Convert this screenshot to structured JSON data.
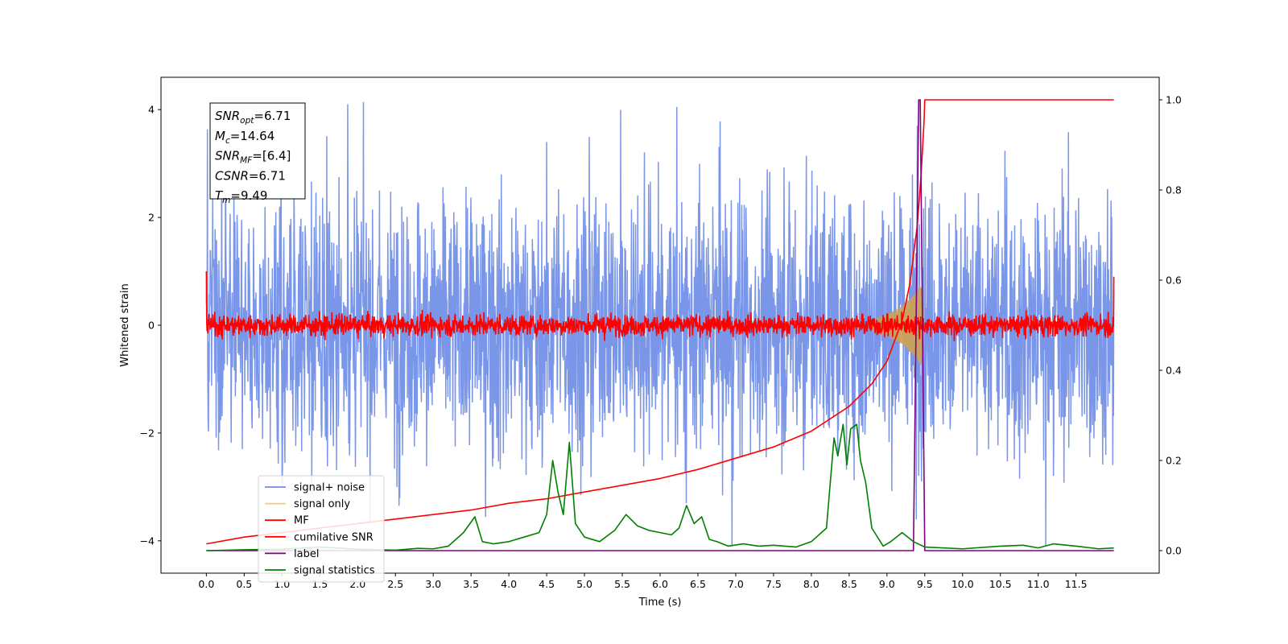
{
  "chart_data": {
    "type": "line",
    "xlabel": "Time (s)",
    "ylabel": "Whitened strain",
    "xlim": [
      -0.6,
      12.6
    ],
    "ylim_left": [
      -4.6,
      4.6
    ],
    "ylim_right": [
      -0.05,
      1.05
    ],
    "xticks": [
      0.0,
      0.5,
      1.0,
      1.5,
      2.0,
      2.5,
      3.0,
      3.5,
      4.0,
      4.5,
      5.0,
      5.5,
      6.0,
      6.5,
      7.0,
      7.5,
      8.0,
      8.5,
      9.0,
      9.5,
      10.0,
      10.5,
      11.0,
      11.5
    ],
    "xtick_labels": [
      "0.0",
      "0.5",
      "1.0",
      "1.5",
      "2.0",
      "2.5",
      "3.0",
      "3.5",
      "4.0",
      "4.5",
      "5.0",
      "5.5",
      "6.0",
      "6.5",
      "7.0",
      "7.5",
      "8.0",
      "8.5",
      "9.0",
      "9.5",
      "10.0",
      "10.5",
      "11.0",
      "11.5"
    ],
    "yticks_left": [
      -4,
      -2,
      0,
      2,
      4
    ],
    "yticks_left_labels": [
      "−4",
      "−2",
      "0",
      "2",
      "4"
    ],
    "yticks_right": [
      0.0,
      0.2,
      0.4,
      0.6,
      0.8,
      1.0
    ],
    "yticks_right_labels": [
      "0.0",
      "0.2",
      "0.4",
      "0.6",
      "0.8",
      "1.0"
    ],
    "grid": false,
    "legend_position": "lower-left",
    "series": [
      {
        "name": "signal+ noise",
        "color": "#6b8be6",
        "axis": "left",
        "x_range": [
          0,
          12
        ],
        "envelope": {
          "x": [
            0,
            12
          ],
          "lower": [
            -2.8,
            -2.8
          ],
          "upper": [
            2.8,
            2.8
          ]
        },
        "peaks": [
          [
            1.87,
            4.1
          ],
          [
            6.22,
            4.05
          ],
          [
            9.4,
            3.7
          ],
          [
            11.1,
            -4.1
          ],
          [
            6.95,
            -4.1
          ]
        ]
      },
      {
        "name": "signal only",
        "color": "#f5c97a",
        "axis": "left",
        "x": [
          8.8,
          9.0,
          9.2,
          9.35,
          9.45,
          9.5
        ],
        "amplitude": [
          0.1,
          0.2,
          0.35,
          0.55,
          0.75,
          0.0
        ]
      },
      {
        "name": "MF",
        "color": "#ff0000",
        "axis": "left",
        "x_range": [
          0,
          12
        ],
        "amplitude": 0.22,
        "start_value": 1.0,
        "end_value": 0.9
      },
      {
        "name": "cumilative SNR",
        "color": "#ff0000",
        "axis": "right",
        "x": [
          0.0,
          0.5,
          1.0,
          1.5,
          2.0,
          2.5,
          3.0,
          3.5,
          4.0,
          4.5,
          5.0,
          5.5,
          6.0,
          6.5,
          7.0,
          7.5,
          8.0,
          8.5,
          8.8,
          9.0,
          9.2,
          9.3,
          9.4,
          9.45,
          9.49,
          9.5,
          12.0
        ],
        "y": [
          0.015,
          0.03,
          0.04,
          0.05,
          0.06,
          0.07,
          0.08,
          0.09,
          0.105,
          0.115,
          0.13,
          0.145,
          0.16,
          0.18,
          0.205,
          0.23,
          0.265,
          0.32,
          0.37,
          0.42,
          0.51,
          0.59,
          0.72,
          0.83,
          0.95,
          1.0,
          1.0
        ]
      },
      {
        "name": "label",
        "color": "#800080",
        "axis": "right",
        "x": [
          0.0,
          9.35,
          9.42,
          9.44,
          9.5,
          12.0
        ],
        "y": [
          0.0,
          0.0,
          1.0,
          1.0,
          0.0,
          0.0
        ]
      },
      {
        "name": "signal statistics",
        "color": "#008000",
        "axis": "right",
        "x": [
          0.0,
          0.5,
          1.0,
          1.5,
          2.0,
          2.5,
          2.8,
          3.0,
          3.2,
          3.4,
          3.55,
          3.65,
          3.8,
          4.0,
          4.2,
          4.4,
          4.5,
          4.58,
          4.65,
          4.72,
          4.8,
          4.88,
          5.0,
          5.2,
          5.4,
          5.55,
          5.7,
          5.85,
          6.0,
          6.15,
          6.25,
          6.35,
          6.45,
          6.55,
          6.65,
          6.75,
          6.9,
          7.1,
          7.3,
          7.5,
          7.8,
          8.0,
          8.2,
          8.3,
          8.35,
          8.42,
          8.47,
          8.52,
          8.6,
          8.65,
          8.72,
          8.8,
          8.95,
          9.05,
          9.2,
          9.35,
          9.5,
          10.0,
          10.5,
          10.8,
          11.0,
          11.2,
          11.5,
          11.8,
          12.0
        ],
        "y": [
          0.0,
          0.002,
          0.003,
          0.008,
          0.003,
          0.001,
          0.005,
          0.004,
          0.01,
          0.04,
          0.075,
          0.02,
          0.015,
          0.02,
          0.03,
          0.04,
          0.08,
          0.2,
          0.13,
          0.08,
          0.24,
          0.06,
          0.03,
          0.02,
          0.045,
          0.08,
          0.055,
          0.045,
          0.04,
          0.035,
          0.05,
          0.1,
          0.06,
          0.075,
          0.025,
          0.02,
          0.01,
          0.015,
          0.01,
          0.012,
          0.008,
          0.02,
          0.05,
          0.25,
          0.21,
          0.28,
          0.19,
          0.27,
          0.28,
          0.2,
          0.15,
          0.05,
          0.01,
          0.02,
          0.04,
          0.02,
          0.008,
          0.004,
          0.01,
          0.012,
          0.006,
          0.015,
          0.01,
          0.004,
          0.006
        ]
      }
    ],
    "annotation": {
      "lines": [
        {
          "base": "SNR",
          "sub": "opt",
          "value": "=6.71"
        },
        {
          "base": "M",
          "sub": "c",
          "value": "=14.64"
        },
        {
          "base": "SNR",
          "sub": "MF",
          "value": "=[6.4]"
        },
        {
          "base": "CSNR",
          "sub": "",
          "value": "=6.71"
        },
        {
          "base": "T",
          "sub": "m",
          "value": "=9.49"
        }
      ]
    }
  }
}
